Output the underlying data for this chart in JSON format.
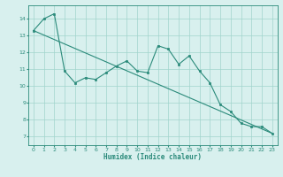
{
  "line1_x": [
    0,
    1,
    2,
    3,
    4,
    5,
    6,
    7,
    8,
    9,
    10,
    11,
    12,
    13,
    14,
    15,
    16,
    17,
    18,
    19,
    20,
    21,
    22,
    23
  ],
  "line1_y": [
    13.3,
    14.0,
    14.3,
    10.9,
    10.2,
    10.5,
    10.4,
    10.8,
    11.2,
    11.5,
    10.9,
    10.8,
    12.4,
    12.2,
    11.3,
    11.8,
    10.9,
    10.2,
    8.9,
    8.5,
    7.8,
    7.6,
    7.6,
    7.2
  ],
  "line2_x": [
    0,
    23
  ],
  "line2_y": [
    13.3,
    7.2
  ],
  "line_color": "#2a8a7a",
  "bg_color": "#d8f0ee",
  "grid_color": "#a0d4cc",
  "xlabel": "Humidex (Indice chaleur)",
  "xlim": [
    -0.5,
    23.5
  ],
  "ylim": [
    6.5,
    14.8
  ],
  "yticks": [
    7,
    8,
    9,
    10,
    11,
    12,
    13,
    14
  ],
  "xticks": [
    0,
    1,
    2,
    3,
    4,
    5,
    6,
    7,
    8,
    9,
    10,
    11,
    12,
    13,
    14,
    15,
    16,
    17,
    18,
    19,
    20,
    21,
    22,
    23
  ]
}
